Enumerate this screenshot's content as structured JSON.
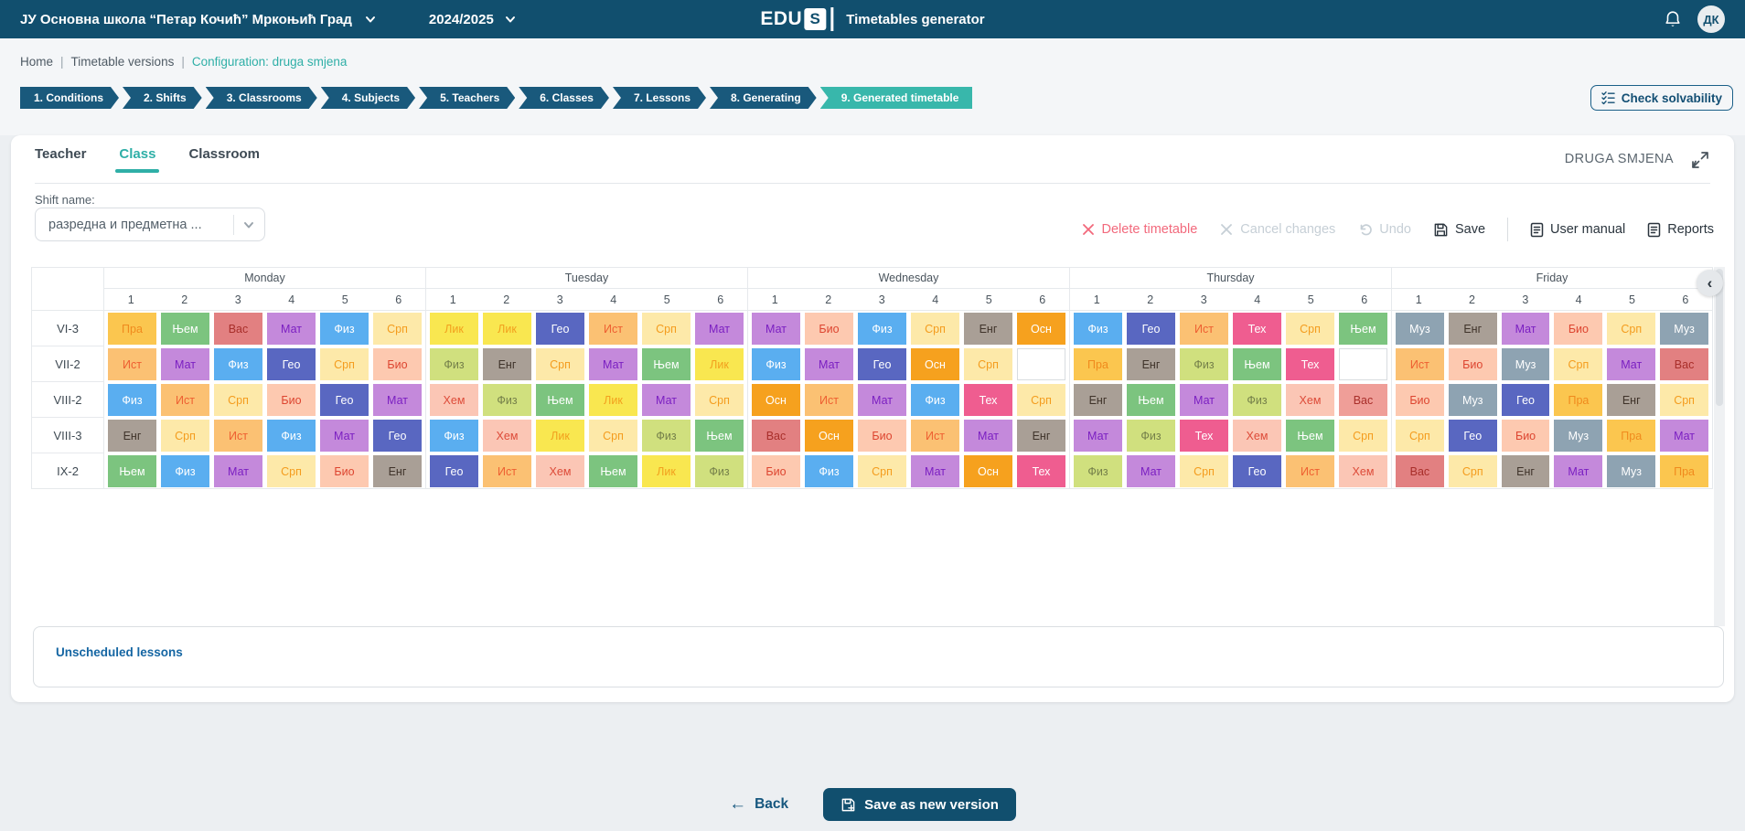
{
  "topbar": {
    "school_name": "ЈУ Основна школа “Петар Кочић” Мркоњић Град",
    "school_year": "2024/2025",
    "logo_text": "EDU",
    "logo_badge": "S",
    "app_title": "Timetables generator",
    "avatar_initials": "ДК"
  },
  "breadcrumb": {
    "home": "Home",
    "versions": "Timetable versions",
    "separator": "|",
    "active": "Configuration: druga smjena"
  },
  "steps": {
    "active_index": 8,
    "items": [
      "1. Conditions",
      "2. Shifts",
      "3. Classrooms",
      "4. Subjects",
      "5. Teachers",
      "6. Classes",
      "7. Lessons",
      "8. Generating",
      "9. Generated timetable"
    ]
  },
  "check_solvability_label": "Check solvability",
  "view_tabs": {
    "teacher": "Teacher",
    "class": "Class",
    "classroom": "Classroom",
    "shift_badge": "DRUGA SMJENA"
  },
  "shift_select": {
    "label": "Shift name:",
    "value": "разредна и предметна ..."
  },
  "toolbar": {
    "delete_label": "Delete timetable",
    "cancel_label": "Cancel changes",
    "undo_label": "Undo",
    "save_label": "Save",
    "user_manual_label": "User manual",
    "reports_label": "Reports"
  },
  "icons": {
    "delete": "✕",
    "cancel": "✕",
    "collapse": "‹",
    "back_arrow": "←"
  },
  "timetable": {
    "days": [
      "Monday",
      "Tuesday",
      "Wednesday",
      "Thursday",
      "Friday"
    ],
    "periods": [
      "1",
      "2",
      "3",
      "4",
      "5",
      "6"
    ],
    "palette": {
      "amber": {
        "bg": "#FBC64F",
        "fg": "#F08A1D"
      },
      "green": {
        "bg": "#7CC47F",
        "fg": "#FFFFFF"
      },
      "red": {
        "bg": "#E28081",
        "fg": "#A82E2A"
      },
      "salmon": {
        "bg": "#EF9E98",
        "fg": "#A82E2A"
      },
      "purple": {
        "bg": "#C489DB",
        "fg": "#7B1FC2"
      },
      "blue": {
        "bg": "#5AAEF0",
        "fg": "#FFFFFF"
      },
      "paleyellow": {
        "bg": "#FDE9A9",
        "fg": "#F49C1D"
      },
      "lightorange": {
        "bg": "#FBC173",
        "fg": "#EE5F31"
      },
      "indigo": {
        "bg": "#5967C1",
        "fg": "#FFFFFF"
      },
      "peach": {
        "bg": "#FDC9B0",
        "fg": "#DD4530"
      },
      "taupe": {
        "bg": "#A99F96",
        "fg": "#3F332A"
      },
      "yellow": {
        "bg": "#F9E750",
        "fg": "#F2A01E"
      },
      "yellowgreen": {
        "bg": "#D0E07E",
        "fg": "#75804A"
      },
      "pinkpeach": {
        "bg": "#FBC6B5",
        "fg": "#DD4B39"
      },
      "orange": {
        "bg": "#F6A11E",
        "fg": "#FFFFFF"
      },
      "pink": {
        "bg": "#EF5D90",
        "fg": "#FFFFFF"
      },
      "grayblue": {
        "bg": "#8EA3B2",
        "fg": "#FFFFFF"
      }
    },
    "rows": [
      {
        "class_name": "VI-3",
        "days": [
          [
            [
              "Пра",
              "amber"
            ],
            [
              "Њем",
              "green"
            ],
            [
              "Вас",
              "red"
            ],
            [
              "Мат",
              "purple"
            ],
            [
              "Физ",
              "blue"
            ],
            [
              "Срп",
              "paleyellow"
            ]
          ],
          [
            [
              "Лик",
              "yellow"
            ],
            [
              "Лик",
              "yellow"
            ],
            [
              "Гео",
              "indigo"
            ],
            [
              "Ист",
              "lightorange"
            ],
            [
              "Срп",
              "paleyellow"
            ],
            [
              "Мат",
              "purple"
            ]
          ],
          [
            [
              "Мат",
              "purple"
            ],
            [
              "Био",
              "peach"
            ],
            [
              "Физ",
              "blue"
            ],
            [
              "Срп",
              "paleyellow"
            ],
            [
              "Енг",
              "taupe"
            ],
            [
              "Осн",
              "orange"
            ]
          ],
          [
            [
              "Физ",
              "blue"
            ],
            [
              "Гео",
              "indigo"
            ],
            [
              "Ист",
              "lightorange"
            ],
            [
              "Тех",
              "pink"
            ],
            [
              "Срп",
              "paleyellow"
            ],
            [
              "Њем",
              "green"
            ]
          ],
          [
            [
              "Муз",
              "grayblue"
            ],
            [
              "Енг",
              "taupe"
            ],
            [
              "Мат",
              "purple"
            ],
            [
              "Био",
              "peach"
            ],
            [
              "Срп",
              "paleyellow"
            ],
            [
              "Муз",
              "grayblue"
            ]
          ]
        ]
      },
      {
        "class_name": "VII-2",
        "days": [
          [
            [
              "Ист",
              "lightorange"
            ],
            [
              "Мат",
              "purple"
            ],
            [
              "Физ",
              "blue"
            ],
            [
              "Гео",
              "indigo"
            ],
            [
              "Срп",
              "paleyellow"
            ],
            [
              "Био",
              "peach"
            ]
          ],
          [
            [
              "Физ",
              "yellowgreen"
            ],
            [
              "Енг",
              "taupe"
            ],
            [
              "Срп",
              "paleyellow"
            ],
            [
              "Мат",
              "purple"
            ],
            [
              "Њем",
              "green"
            ],
            [
              "Лик",
              "yellow"
            ]
          ],
          [
            [
              "Физ",
              "blue"
            ],
            [
              "Мат",
              "purple"
            ],
            [
              "Гео",
              "indigo"
            ],
            [
              "Осн",
              "orange"
            ],
            [
              "Срп",
              "paleyellow"
            ],
            null
          ],
          [
            [
              "Пра",
              "amber"
            ],
            [
              "Енг",
              "taupe"
            ],
            [
              "Физ",
              "yellowgreen"
            ],
            [
              "Њем",
              "green"
            ],
            [
              "Тех",
              "pink"
            ],
            null
          ],
          [
            [
              "Ист",
              "lightorange"
            ],
            [
              "Био",
              "peach"
            ],
            [
              "Муз",
              "grayblue"
            ],
            [
              "Срп",
              "paleyellow"
            ],
            [
              "Мат",
              "purple"
            ],
            [
              "Вас",
              "red"
            ]
          ]
        ]
      },
      {
        "class_name": "VIII-2",
        "days": [
          [
            [
              "Физ",
              "blue"
            ],
            [
              "Ист",
              "lightorange"
            ],
            [
              "Срп",
              "paleyellow"
            ],
            [
              "Био",
              "peach"
            ],
            [
              "Гео",
              "indigo"
            ],
            [
              "Мат",
              "purple"
            ]
          ],
          [
            [
              "Хем",
              "pinkpeach"
            ],
            [
              "Физ",
              "yellowgreen"
            ],
            [
              "Њем",
              "green"
            ],
            [
              "Лик",
              "yellow"
            ],
            [
              "Мат",
              "purple"
            ],
            [
              "Срп",
              "paleyellow"
            ]
          ],
          [
            [
              "Осн",
              "orange"
            ],
            [
              "Ист",
              "lightorange"
            ],
            [
              "Мат",
              "purple"
            ],
            [
              "Физ",
              "blue"
            ],
            [
              "Тех",
              "pink"
            ],
            [
              "Срп",
              "paleyellow"
            ]
          ],
          [
            [
              "Енг",
              "taupe"
            ],
            [
              "Њем",
              "green"
            ],
            [
              "Мат",
              "purple"
            ],
            [
              "Физ",
              "yellowgreen"
            ],
            [
              "Хем",
              "pinkpeach"
            ],
            [
              "Вас",
              "salmon"
            ]
          ],
          [
            [
              "Био",
              "peach"
            ],
            [
              "Муз",
              "grayblue"
            ],
            [
              "Гео",
              "indigo"
            ],
            [
              "Пра",
              "amber"
            ],
            [
              "Енг",
              "taupe"
            ],
            [
              "Срп",
              "paleyellow"
            ]
          ]
        ]
      },
      {
        "class_name": "VIII-3",
        "days": [
          [
            [
              "Енг",
              "taupe"
            ],
            [
              "Срп",
              "paleyellow"
            ],
            [
              "Ист",
              "lightorange"
            ],
            [
              "Физ",
              "blue"
            ],
            [
              "Мат",
              "purple"
            ],
            [
              "Гео",
              "indigo"
            ]
          ],
          [
            [
              "Физ",
              "blue"
            ],
            [
              "Хем",
              "pinkpeach"
            ],
            [
              "Лик",
              "yellow"
            ],
            [
              "Срп",
              "paleyellow"
            ],
            [
              "Физ",
              "yellowgreen"
            ],
            [
              "Њем",
              "green"
            ]
          ],
          [
            [
              "Вас",
              "red"
            ],
            [
              "Осн",
              "orange"
            ],
            [
              "Био",
              "peach"
            ],
            [
              "Ист",
              "lightorange"
            ],
            [
              "Мат",
              "purple"
            ],
            [
              "Енг",
              "taupe"
            ]
          ],
          [
            [
              "Мат",
              "purple"
            ],
            [
              "Физ",
              "yellowgreen"
            ],
            [
              "Тех",
              "pink"
            ],
            [
              "Хем",
              "pinkpeach"
            ],
            [
              "Њем",
              "green"
            ],
            [
              "Срп",
              "paleyellow"
            ]
          ],
          [
            [
              "Срп",
              "paleyellow"
            ],
            [
              "Гео",
              "indigo"
            ],
            [
              "Био",
              "peach"
            ],
            [
              "Муз",
              "grayblue"
            ],
            [
              "Пра",
              "amber"
            ],
            [
              "Мат",
              "purple"
            ]
          ]
        ]
      },
      {
        "class_name": "IX-2",
        "days": [
          [
            [
              "Њем",
              "green"
            ],
            [
              "Физ",
              "blue"
            ],
            [
              "Мат",
              "purple"
            ],
            [
              "Срп",
              "paleyellow"
            ],
            [
              "Био",
              "peach"
            ],
            [
              "Енг",
              "taupe"
            ]
          ],
          [
            [
              "Гео",
              "indigo"
            ],
            [
              "Ист",
              "lightorange"
            ],
            [
              "Хем",
              "pinkpeach"
            ],
            [
              "Њем",
              "green"
            ],
            [
              "Лик",
              "yellow"
            ],
            [
              "Физ",
              "yellowgreen"
            ]
          ],
          [
            [
              "Био",
              "peach"
            ],
            [
              "Физ",
              "blue"
            ],
            [
              "Срп",
              "paleyellow"
            ],
            [
              "Мат",
              "purple"
            ],
            [
              "Осн",
              "orange"
            ],
            [
              "Тех",
              "pink"
            ]
          ],
          [
            [
              "Физ",
              "yellowgreen"
            ],
            [
              "Мат",
              "purple"
            ],
            [
              "Срп",
              "paleyellow"
            ],
            [
              "Гео",
              "indigo"
            ],
            [
              "Ист",
              "lightorange"
            ],
            [
              "Хем",
              "pinkpeach"
            ]
          ],
          [
            [
              "Вас",
              "red"
            ],
            [
              "Срп",
              "paleyellow"
            ],
            [
              "Енг",
              "taupe"
            ],
            [
              "Мат",
              "purple"
            ],
            [
              "Муз",
              "grayblue"
            ],
            [
              "Пра",
              "amber"
            ]
          ]
        ]
      }
    ]
  },
  "unscheduled_title": "Unscheduled lessons",
  "footer": {
    "back_label": "Back",
    "save_new_label": "Save as new version"
  },
  "theme": {
    "topbar_bg": "#114F6E",
    "step_bg": "#19597C",
    "step_active_bg": "#38B7AB",
    "accent_teal": "#2FAFA7",
    "danger": "#F2697C",
    "primary": "#114F6E",
    "link_blue": "#15567E"
  }
}
